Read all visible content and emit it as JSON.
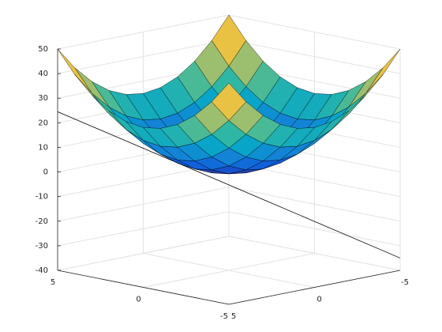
{
  "chart_data": {
    "type": "surface",
    "x": [
      -5,
      -4,
      -3,
      -2,
      -1,
      0,
      1,
      2,
      3,
      4,
      5
    ],
    "y": [
      -5,
      -4,
      -3,
      -2,
      -1,
      0,
      1,
      2,
      3,
      4,
      5
    ],
    "z": [
      [
        50,
        41,
        34,
        29,
        26,
        25,
        26,
        29,
        34,
        41,
        50
      ],
      [
        41,
        32,
        25,
        20,
        17,
        16,
        17,
        20,
        25,
        32,
        41
      ],
      [
        34,
        25,
        18,
        13,
        10,
        9,
        10,
        13,
        18,
        25,
        34
      ],
      [
        29,
        20,
        13,
        8,
        5,
        4,
        5,
        8,
        13,
        20,
        29
      ],
      [
        26,
        17,
        10,
        5,
        2,
        1,
        2,
        5,
        10,
        17,
        26
      ],
      [
        25,
        16,
        9,
        4,
        1,
        0,
        1,
        4,
        9,
        16,
        25
      ],
      [
        26,
        17,
        10,
        5,
        2,
        1,
        2,
        5,
        10,
        17,
        26
      ],
      [
        29,
        20,
        13,
        8,
        5,
        4,
        5,
        8,
        13,
        20,
        29
      ],
      [
        34,
        25,
        18,
        13,
        10,
        9,
        10,
        13,
        18,
        25,
        34
      ],
      [
        41,
        32,
        25,
        20,
        17,
        16,
        17,
        20,
        25,
        32,
        41
      ],
      [
        50,
        41,
        34,
        29,
        26,
        25,
        26,
        29,
        34,
        41,
        50
      ]
    ],
    "line": {
      "x": [
        5,
        -5
      ],
      "y": [
        5,
        -5
      ],
      "z": [
        24.5,
        -35
      ],
      "color": "#000000"
    },
    "xlim": [
      -5,
      5
    ],
    "ylim": [
      -5,
      5
    ],
    "zlim": [
      -40,
      50
    ],
    "xticks": [
      -5,
      0,
      5
    ],
    "yticks": [
      -5,
      0,
      5
    ],
    "zticks": [
      -40,
      -30,
      -20,
      -10,
      0,
      10,
      20,
      30,
      40,
      50
    ],
    "grid": true
  }
}
